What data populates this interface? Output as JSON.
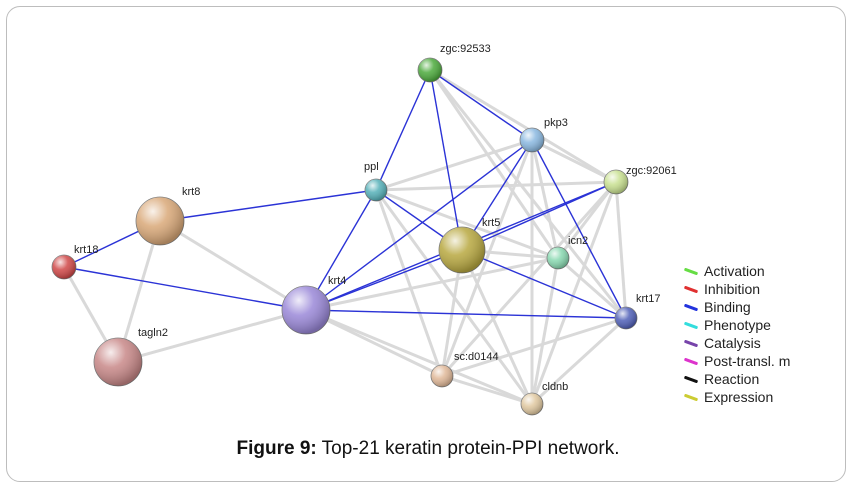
{
  "caption": {
    "label": "Figure 9:",
    "text": " Top-21 keratin protein-PPI network."
  },
  "legend": [
    {
      "label": "Activation",
      "color": "#66dd44"
    },
    {
      "label": "Inhibition",
      "color": "#e03030"
    },
    {
      "label": "Binding",
      "color": "#2233dd"
    },
    {
      "label": "Phenotype",
      "color": "#33dddd"
    },
    {
      "label": "Catalysis",
      "color": "#7744aa"
    },
    {
      "label": "Post-transl. m",
      "color": "#dd33cc"
    },
    {
      "label": "Reaction",
      "color": "#111111"
    },
    {
      "label": "Expression",
      "color": "#cccc33"
    }
  ],
  "nodes": [
    {
      "id": "zgc:92533",
      "label": "zgc:92533",
      "color": "#4caa3c"
    },
    {
      "id": "pkp3",
      "label": "pkp3",
      "color": "#8ab8e0"
    },
    {
      "id": "zgc:92061",
      "label": "zgc:92061",
      "color": "#c8e090"
    },
    {
      "id": "ppl",
      "label": "ppl",
      "color": "#55b0b8"
    },
    {
      "id": "krt8",
      "label": "krt8",
      "color": "#d9a878"
    },
    {
      "id": "krt5",
      "label": "krt5",
      "color": "#b8a840"
    },
    {
      "id": "icn2",
      "label": "icn2",
      "color": "#88d8b0"
    },
    {
      "id": "krt18",
      "label": "krt18",
      "color": "#d04848"
    },
    {
      "id": "krt4",
      "label": "krt4",
      "color": "#9a88d8"
    },
    {
      "id": "krt17",
      "label": "krt17",
      "color": "#5060b8"
    },
    {
      "id": "tagln2",
      "label": "tagln2",
      "color": "#c88888"
    },
    {
      "id": "sc:d0144",
      "label": "sc:d0144",
      "color": "#e0b898"
    },
    {
      "id": "cldnb",
      "label": "cldnb",
      "color": "#e0c8a0"
    }
  ],
  "edges": [
    {
      "source": "zgc:92533",
      "target": "pkp3",
      "type": "binding"
    },
    {
      "source": "zgc:92533",
      "target": "ppl",
      "type": "binding"
    },
    {
      "source": "zgc:92533",
      "target": "krt5",
      "type": "binding"
    },
    {
      "source": "zgc:92533",
      "target": "zgc:92061",
      "type": "association"
    },
    {
      "source": "zgc:92533",
      "target": "krt17",
      "type": "association"
    },
    {
      "source": "zgc:92533",
      "target": "icn2",
      "type": "association"
    },
    {
      "source": "pkp3",
      "target": "krt4",
      "type": "binding"
    },
    {
      "source": "pkp3",
      "target": "krt5",
      "type": "binding"
    },
    {
      "source": "pkp3",
      "target": "krt17",
      "type": "binding"
    },
    {
      "source": "pkp3",
      "target": "zgc:92061",
      "type": "association"
    },
    {
      "source": "pkp3",
      "target": "ppl",
      "type": "association"
    },
    {
      "source": "pkp3",
      "target": "icn2",
      "type": "association"
    },
    {
      "source": "pkp3",
      "target": "sc:d0144",
      "type": "association"
    },
    {
      "source": "pkp3",
      "target": "cldnb",
      "type": "association"
    },
    {
      "source": "zgc:92061",
      "target": "krt5",
      "type": "binding"
    },
    {
      "source": "zgc:92061",
      "target": "krt4",
      "type": "binding"
    },
    {
      "source": "zgc:92061",
      "target": "ppl",
      "type": "association"
    },
    {
      "source": "zgc:92061",
      "target": "icn2",
      "type": "association"
    },
    {
      "source": "zgc:92061",
      "target": "krt17",
      "type": "association"
    },
    {
      "source": "zgc:92061",
      "target": "sc:d0144",
      "type": "association"
    },
    {
      "source": "zgc:92061",
      "target": "cldnb",
      "type": "association"
    },
    {
      "source": "ppl",
      "target": "krt8",
      "type": "binding"
    },
    {
      "source": "ppl",
      "target": "krt4",
      "type": "binding"
    },
    {
      "source": "ppl",
      "target": "krt5",
      "type": "binding"
    },
    {
      "source": "ppl",
      "target": "icn2",
      "type": "association"
    },
    {
      "source": "ppl",
      "target": "sc:d0144",
      "type": "association"
    },
    {
      "source": "ppl",
      "target": "cldnb",
      "type": "association"
    },
    {
      "source": "krt8",
      "target": "krt18",
      "type": "binding"
    },
    {
      "source": "krt8",
      "target": "tagln2",
      "type": "association"
    },
    {
      "source": "krt8",
      "target": "krt4",
      "type": "association"
    },
    {
      "source": "krt18",
      "target": "krt4",
      "type": "binding"
    },
    {
      "source": "krt18",
      "target": "tagln2",
      "type": "association"
    },
    {
      "source": "krt4",
      "target": "krt5",
      "type": "binding"
    },
    {
      "source": "krt4",
      "target": "krt17",
      "type": "binding"
    },
    {
      "source": "krt4",
      "target": "tagln2",
      "type": "association"
    },
    {
      "source": "krt4",
      "target": "sc:d0144",
      "type": "association"
    },
    {
      "source": "krt4",
      "target": "icn2",
      "type": "association"
    },
    {
      "source": "krt4",
      "target": "cldnb",
      "type": "association"
    },
    {
      "source": "krt5",
      "target": "krt17",
      "type": "binding"
    },
    {
      "source": "krt5",
      "target": "icn2",
      "type": "association"
    },
    {
      "source": "krt5",
      "target": "sc:d0144",
      "type": "association"
    },
    {
      "source": "krt5",
      "target": "cldnb",
      "type": "association"
    },
    {
      "source": "icn2",
      "target": "krt17",
      "type": "association"
    },
    {
      "source": "icn2",
      "target": "cldnb",
      "type": "association"
    },
    {
      "source": "krt17",
      "target": "cldnb",
      "type": "association"
    },
    {
      "source": "krt17",
      "target": "sc:d0144",
      "type": "association"
    },
    {
      "source": "sc:d0144",
      "target": "cldnb",
      "type": "association"
    }
  ],
  "colors": {
    "binding_edge": "#2b33d6",
    "association_edge": "#d9d9d9"
  }
}
